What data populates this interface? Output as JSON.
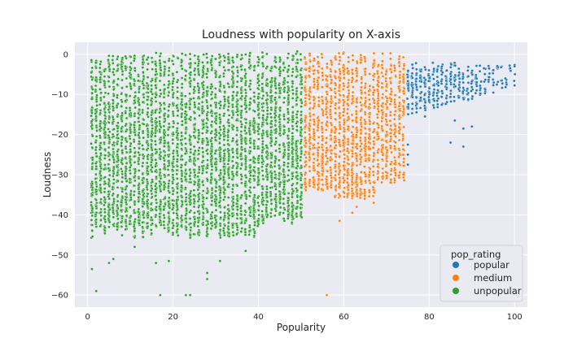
{
  "chart_data": {
    "type": "scatter",
    "title": "Loudness with popularity on X-axis",
    "xlabel": "Popularity",
    "ylabel": "Loudness",
    "xlim": [
      -3,
      103
    ],
    "ylim": [
      -63,
      3
    ],
    "xticks": [
      0,
      20,
      40,
      60,
      80,
      100
    ],
    "yticks": [
      0,
      -10,
      -20,
      -30,
      -40,
      -50,
      -60
    ],
    "grid": true,
    "legend": {
      "title": "pop_rating",
      "placement": "bottom-right",
      "entries": [
        {
          "label": "popular",
          "color": "#1f77b4"
        },
        {
          "label": "medium",
          "color": "#ff7f0e"
        },
        {
          "label": "unpopular",
          "color": "#2ca02c"
        }
      ]
    },
    "series": [
      {
        "name": "popular",
        "color": "#1f77b4",
        "x_range": [
          75,
          100
        ],
        "density": "decreasing with popularity",
        "typical_y_range": [
          -15,
          -2
        ],
        "outliers": [
          {
            "x": 75,
            "y": -27.5
          },
          {
            "x": 75,
            "y": -25
          },
          {
            "x": 75,
            "y": -22.5
          },
          {
            "x": 79,
            "y": -15.5
          },
          {
            "x": 85,
            "y": -22
          },
          {
            "x": 86,
            "y": -16.5
          },
          {
            "x": 88,
            "y": -23
          },
          {
            "x": 88,
            "y": -18.5
          },
          {
            "x": 90,
            "y": -18
          },
          {
            "x": 100,
            "y": -3
          }
        ]
      },
      {
        "name": "medium",
        "color": "#ff7f0e",
        "x_range": [
          51,
          74
        ],
        "density": "dense",
        "typical_y_range": [
          -35,
          0
        ],
        "outliers": [
          {
            "x": 56,
            "y": -60
          },
          {
            "x": 59,
            "y": -41.5
          },
          {
            "x": 62,
            "y": -39.5
          },
          {
            "x": 63,
            "y": -38
          },
          {
            "x": 67,
            "y": -37
          },
          {
            "x": 71,
            "y": -32
          }
        ]
      },
      {
        "name": "unpopular",
        "color": "#2ca02c",
        "x_range": [
          1,
          50
        ],
        "density": "very dense",
        "typical_y_range": [
          -45,
          1
        ],
        "outliers": [
          {
            "x": 1,
            "y": -53.5
          },
          {
            "x": 2,
            "y": -59
          },
          {
            "x": 5,
            "y": -52
          },
          {
            "x": 6,
            "y": -51
          },
          {
            "x": 11,
            "y": -48
          },
          {
            "x": 16,
            "y": -52
          },
          {
            "x": 17,
            "y": -60
          },
          {
            "x": 19,
            "y": -51.5
          },
          {
            "x": 23,
            "y": -60
          },
          {
            "x": 24,
            "y": -60
          },
          {
            "x": 28,
            "y": -56
          },
          {
            "x": 28,
            "y": -54.5
          },
          {
            "x": 31,
            "y": -51.5
          },
          {
            "x": 37,
            "y": -49
          }
        ]
      }
    ]
  }
}
